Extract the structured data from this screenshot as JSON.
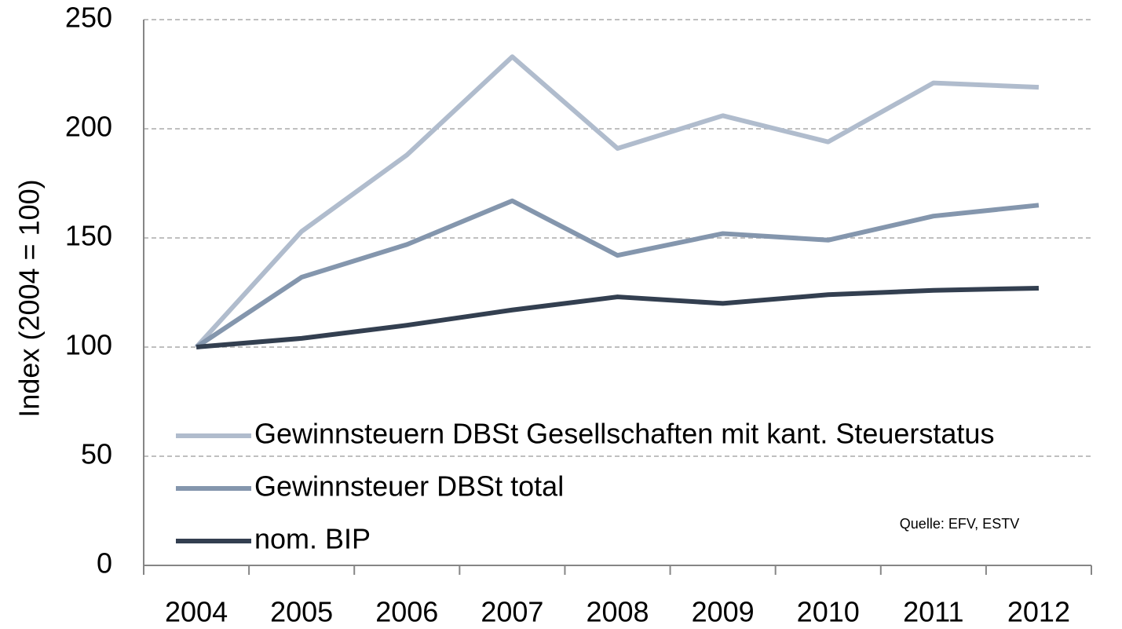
{
  "chart_data": {
    "type": "line",
    "y_label": "Index (2004 = 100)",
    "annotation": "Quelle: EFV, ESTV",
    "categories": [
      "2004",
      "2005",
      "2006",
      "2007",
      "2008",
      "2009",
      "2010",
      "2011",
      "2012"
    ],
    "series": [
      {
        "name": "Gewinnsteuern DBSt Gesellschaften mit kant. Steuerstatus",
        "color": "#b0bccd",
        "values": [
          100,
          153,
          188,
          233,
          191,
          206,
          194,
          221,
          219
        ]
      },
      {
        "name": "Gewinnsteuer DBSt total",
        "color": "#8496ad",
        "values": [
          100,
          132,
          147,
          167,
          142,
          152,
          149,
          160,
          165
        ]
      },
      {
        "name": "nom. BIP",
        "color": "#333f50",
        "values": [
          100,
          104,
          110,
          117,
          123,
          120,
          124,
          126,
          127
        ]
      }
    ],
    "ylim": [
      0,
      250
    ],
    "yticks": [
      0,
      50,
      100,
      150,
      200,
      250
    ],
    "grid": true,
    "legend": "lower left"
  }
}
